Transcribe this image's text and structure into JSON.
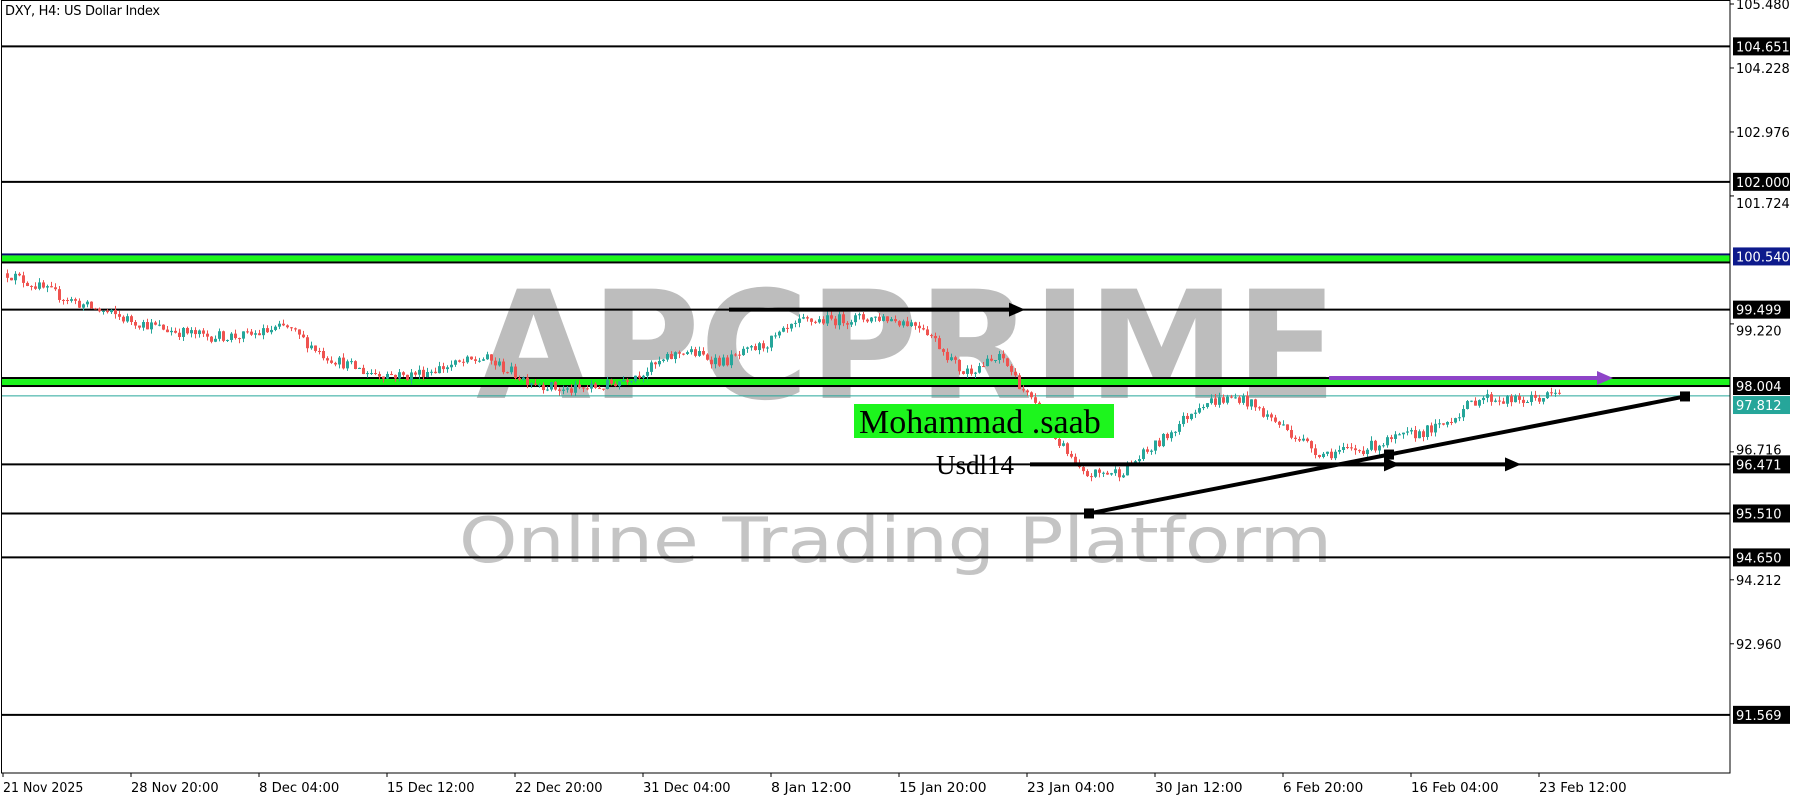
{
  "header": {
    "title": "DXY, H4:  US Dollar Index"
  },
  "colors": {
    "bull": "#26a69a",
    "bear": "#ef5350",
    "zone": "#1df51d",
    "zone_border_top": "#0a0a6e",
    "line": "#000000",
    "arrow_purple": "#8e44c8",
    "bid_line": "#26a69a",
    "watermark": "#bdbdbd"
  },
  "annotations": {
    "name_label": "Mohammad .saab",
    "sub_label": "Usdl14",
    "watermark_brand": "APCPRIME",
    "watermark_tagline": "Online Trading Platform"
  },
  "chart_data": {
    "type": "candlestick",
    "symbol": "DXY",
    "timeframe": "H4",
    "ylim": [
      91.0,
      105.48
    ],
    "y_ticks": [
      "105.480",
      "104.228",
      "102.976",
      "101.724",
      "99.220",
      "96.716",
      "94.212",
      "92.960"
    ],
    "x_ticks": [
      "21 Nov 2025",
      "28 Nov 20:00",
      "8 Dec 04:00",
      "15 Dec 12:00",
      "22 Dec 20:00",
      "31 Dec 04:00",
      "8 Jan 12:00",
      "15 Jan 20:00",
      "23 Jan 04:00",
      "30 Jan 12:00",
      "6 Feb 20:00",
      "16 Feb 04:00",
      "23 Feb 12:00"
    ],
    "approx_close_path": [
      100.21,
      99.87,
      99.56,
      99.31,
      99.11,
      98.98,
      98.98,
      99.16,
      98.59,
      98.28,
      98.2,
      98.38,
      98.55,
      98.14,
      97.91,
      98.0,
      98.29,
      98.7,
      98.47,
      98.8,
      99.27,
      99.31,
      99.35,
      99.19,
      98.27,
      98.56,
      97.38,
      96.26,
      96.33,
      96.93,
      97.68,
      97.78,
      97.24,
      96.68,
      96.76,
      96.99,
      97.2,
      97.79,
      97.7,
      97.85
    ],
    "horizontal_levels": [
      {
        "price": 104.651,
        "label": "104.651",
        "style": "line"
      },
      {
        "price": 102.0,
        "label": "102.000",
        "style": "line"
      },
      {
        "price": 100.54,
        "label": "100.540",
        "style": "zone"
      },
      {
        "price": 99.499,
        "label": "99.499",
        "style": "line"
      },
      {
        "price": 98.004,
        "label": "98.004",
        "style": "zone"
      },
      {
        "price": 96.471,
        "label": "96.471",
        "style": "line"
      },
      {
        "price": 95.51,
        "label": "95.510",
        "style": "line"
      },
      {
        "price": 94.65,
        "label": "94.650",
        "style": "line"
      },
      {
        "price": 91.569,
        "label": "91.569",
        "style": "line"
      }
    ],
    "current_price": {
      "price": 97.812,
      "label": "97.812"
    },
    "trendline": {
      "from": {
        "time": "23 Jan 04:00",
        "price": 95.51
      },
      "to": {
        "price": 97.8
      }
    }
  }
}
